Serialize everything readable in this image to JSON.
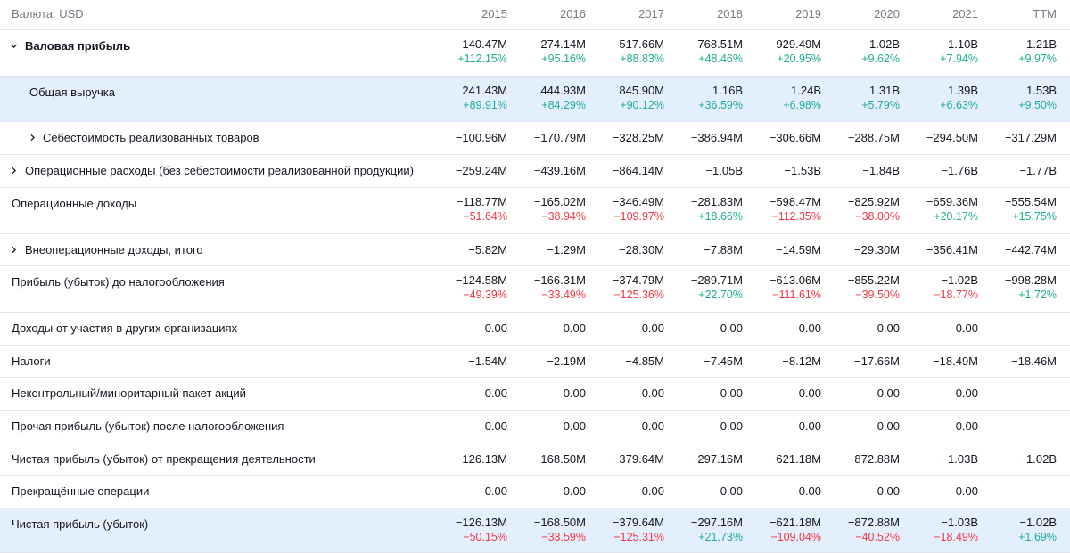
{
  "header": {
    "currency_label": "Валюта: USD",
    "columns": [
      "2015",
      "2016",
      "2017",
      "2018",
      "2019",
      "2020",
      "2021",
      "TTM"
    ]
  },
  "colors": {
    "positive": "#22ab94",
    "negative": "#f23645",
    "highlight": "#e3effd",
    "header_text": "#787b86"
  },
  "rows": [
    {
      "label": "Валовая прибыль",
      "values": [
        "140.47M",
        "274.14M",
        "517.66M",
        "768.51M",
        "929.49M",
        "1.02B",
        "1.10B",
        "1.21B"
      ],
      "changes": [
        "+112.15%",
        "+95.16%",
        "+88.83%",
        "+48.46%",
        "+20.95%",
        "+9.62%",
        "+7.94%",
        "+9.97%"
      ],
      "icon": "chevron-down-icon"
    },
    {
      "label": "Общая выручка",
      "values": [
        "241.43M",
        "444.93M",
        "845.90M",
        "1.16B",
        "1.24B",
        "1.31B",
        "1.39B",
        "1.53B"
      ],
      "changes": [
        "+89.91%",
        "+84.29%",
        "+90.12%",
        "+36.59%",
        "+6.98%",
        "+5.79%",
        "+6.63%",
        "+9.50%"
      ]
    },
    {
      "label": "Себестоимость реализованных товаров",
      "values": [
        "−100.96M",
        "−170.79M",
        "−328.25M",
        "−386.94M",
        "−306.66M",
        "−288.75M",
        "−294.50M",
        "−317.29M"
      ],
      "icon": "chevron-right-icon"
    },
    {
      "label": "Операционные расходы (без себестоимости реализованной продукции)",
      "values": [
        "−259.24M",
        "−439.16M",
        "−864.14M",
        "−1.05B",
        "−1.53B",
        "−1.84B",
        "−1.76B",
        "−1.77B"
      ],
      "icon": "chevron-right-icon"
    },
    {
      "label": "Операционные доходы",
      "values": [
        "−118.77M",
        "−165.02M",
        "−346.49M",
        "−281.83M",
        "−598.47M",
        "−825.92M",
        "−659.36M",
        "−555.54M"
      ],
      "changes": [
        "−51.64%",
        "−38.94%",
        "−109.97%",
        "+18.66%",
        "−112.35%",
        "−38.00%",
        "+20.17%",
        "+15.75%"
      ]
    },
    {
      "label": "Внеоперационные доходы, итого",
      "values": [
        "−5.82M",
        "−1.29M",
        "−28.30M",
        "−7.88M",
        "−14.59M",
        "−29.30M",
        "−356.41M",
        "−442.74M"
      ],
      "icon": "chevron-right-icon"
    },
    {
      "label": "Прибыль (убыток) до налогообложения",
      "values": [
        "−124.58M",
        "−166.31M",
        "−374.79M",
        "−289.71M",
        "−613.06M",
        "−855.22M",
        "−1.02B",
        "−998.28M"
      ],
      "changes": [
        "−49.39%",
        "−33.49%",
        "−125.36%",
        "+22.70%",
        "−111.61%",
        "−39.50%",
        "−18.77%",
        "+1.72%"
      ]
    },
    {
      "label": "Доходы от участия в других организациях",
      "values": [
        "0.00",
        "0.00",
        "0.00",
        "0.00",
        "0.00",
        "0.00",
        "0.00",
        "—"
      ]
    },
    {
      "label": "Налоги",
      "values": [
        "−1.54M",
        "−2.19M",
        "−4.85M",
        "−7.45M",
        "−8.12M",
        "−17.66M",
        "−18.49M",
        "−18.46M"
      ]
    },
    {
      "label": "Неконтрольный/миноритарный пакет акций",
      "values": [
        "0.00",
        "0.00",
        "0.00",
        "0.00",
        "0.00",
        "0.00",
        "0.00",
        "—"
      ]
    },
    {
      "label": "Прочая прибыль (убыток) после налогообложения",
      "values": [
        "0.00",
        "0.00",
        "0.00",
        "0.00",
        "0.00",
        "0.00",
        "0.00",
        "—"
      ]
    },
    {
      "label": "Чистая прибыль (убыток) от прекращения деятельности",
      "values": [
        "−126.13M",
        "−168.50M",
        "−379.64M",
        "−297.16M",
        "−621.18M",
        "−872.88M",
        "−1.03B",
        "−1.02B"
      ]
    },
    {
      "label": "Прекращённые операции",
      "values": [
        "0.00",
        "0.00",
        "0.00",
        "0.00",
        "0.00",
        "0.00",
        "0.00",
        "—"
      ]
    },
    {
      "label": "Чистая прибыль (убыток)",
      "values": [
        "−126.13M",
        "−168.50M",
        "−379.64M",
        "−297.16M",
        "−621.18M",
        "−872.88M",
        "−1.03B",
        "−1.02B"
      ],
      "changes": [
        "−50.15%",
        "−33.59%",
        "−125.31%",
        "+21.73%",
        "−109.04%",
        "−40.52%",
        "−18.49%",
        "+1.69%"
      ]
    }
  ]
}
